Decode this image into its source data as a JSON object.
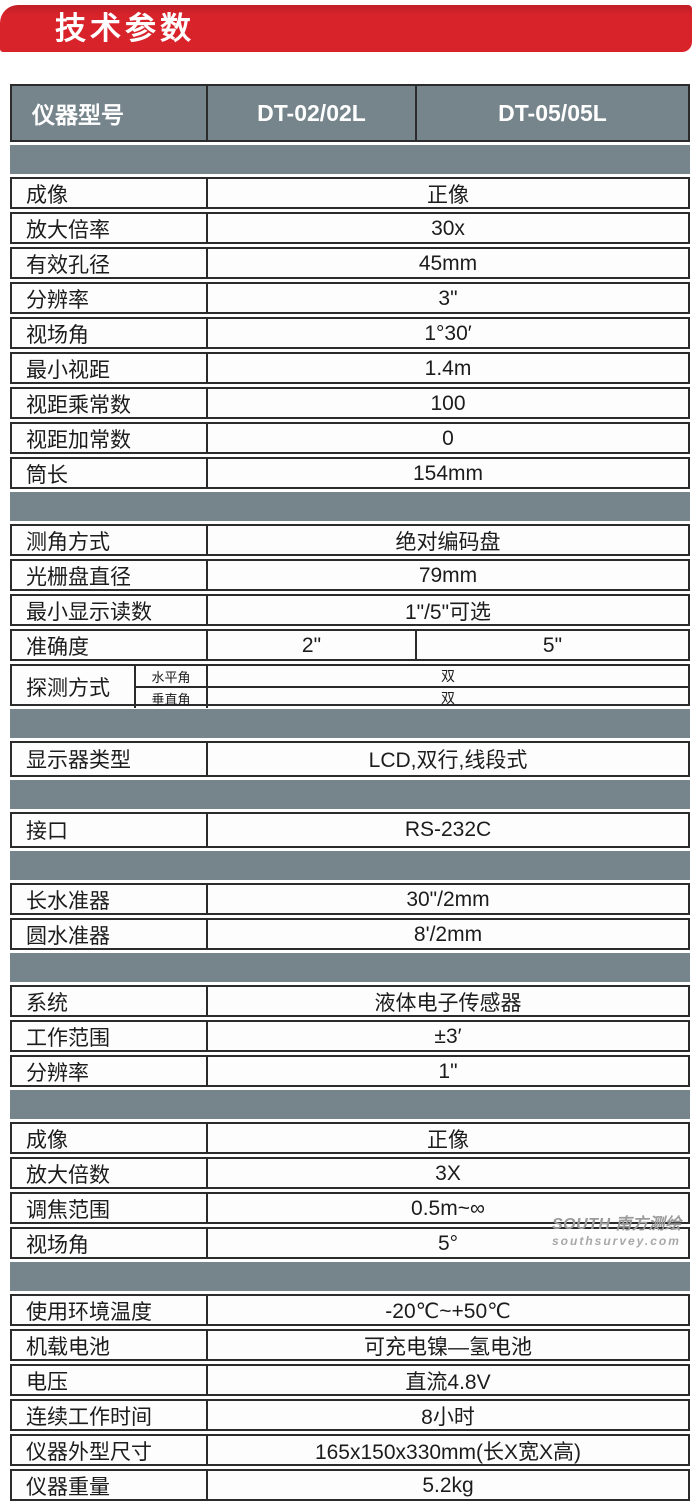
{
  "banner": {
    "title": "技术参数",
    "bg_color": "#d8232a",
    "text_color": "#ffffff"
  },
  "colors": {
    "accent_red": "#d8232a",
    "slate_band": "#76858c",
    "border_dark": "#2b2b2b",
    "cell_bg": "#fdfdfd"
  },
  "watermark": {
    "brand": "SOUTH 南方测绘",
    "site": "southsurvey.com"
  },
  "table": {
    "header": {
      "model_label": "仪器型号",
      "model_a": "DT-02/02L",
      "model_b": "DT-05/05L"
    },
    "sections": [
      {
        "name": "telescope",
        "rows": [
          {
            "label": "成像",
            "value": "正像"
          },
          {
            "label": "放大倍率",
            "value": "30x"
          },
          {
            "label": "有效孔径",
            "value": "45mm"
          },
          {
            "label": "分辨率",
            "value": "3\""
          },
          {
            "label": "视场角",
            "value": "1°30′"
          },
          {
            "label": "最小视距",
            "value": "1.4m"
          },
          {
            "label": "视距乘常数",
            "value": "100"
          },
          {
            "label": "视距加常数",
            "value": "0"
          },
          {
            "label": "筒长",
            "value": "154mm"
          }
        ]
      },
      {
        "name": "angle-measurement",
        "rows": [
          {
            "label": "测角方式",
            "value": "绝对编码盘"
          },
          {
            "label": "光栅盘直径",
            "value": "79mm"
          },
          {
            "label": "最小显示读数",
            "value": "1\"/5\"可选"
          }
        ],
        "accuracy": {
          "label": "准确度",
          "value_a": "2\"",
          "value_b": "5\""
        },
        "detect": {
          "label": "探测方式",
          "sub": [
            {
              "name": "水平角",
              "value": "双"
            },
            {
              "name": "垂直角",
              "value": "双"
            }
          ]
        }
      },
      {
        "name": "display",
        "rows": [
          {
            "label": "显示器类型",
            "value": "LCD,双行,线段式"
          }
        ]
      },
      {
        "name": "interface",
        "rows": [
          {
            "label": "接口",
            "value": "RS-232C"
          }
        ]
      },
      {
        "name": "levels",
        "rows": [
          {
            "label": "长水准器",
            "value": "30\"/2mm"
          },
          {
            "label": "圆水准器",
            "value": "8'/2mm"
          }
        ]
      },
      {
        "name": "compensator",
        "rows": [
          {
            "label": "系统",
            "value": "液体电子传感器"
          },
          {
            "label": "工作范围",
            "value": "±3′"
          },
          {
            "label": "分辨率",
            "value": "1\""
          }
        ]
      },
      {
        "name": "optical-plummet",
        "rows": [
          {
            "label": "成像",
            "value": "正像"
          },
          {
            "label": "放大倍数",
            "value": "3X"
          },
          {
            "label": "调焦范围",
            "value": "0.5m~∞"
          },
          {
            "label": "视场角",
            "value": "5°"
          }
        ]
      },
      {
        "name": "general",
        "rows": [
          {
            "label": "使用环境温度",
            "value": "-20℃~+50℃"
          },
          {
            "label": "机载电池",
            "value": "可充电镍—氢电池"
          },
          {
            "label": "电压",
            "value": "直流4.8V"
          },
          {
            "label": "连续工作时间",
            "value": "8小时"
          },
          {
            "label": "仪器外型尺寸",
            "value": "165x150x330mm(长X宽X高)"
          },
          {
            "label": "仪器重量",
            "value": "5.2kg"
          }
        ]
      }
    ]
  }
}
